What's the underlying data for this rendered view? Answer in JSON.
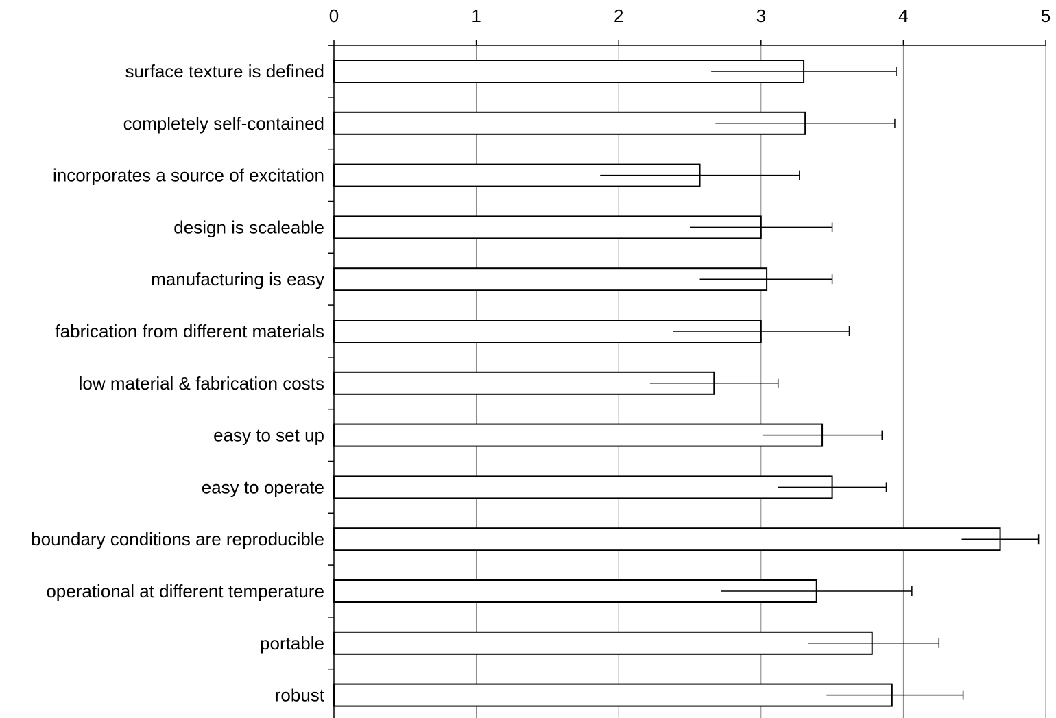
{
  "chart_data": {
    "type": "bar",
    "orientation": "horizontal",
    "x_axis_position": "top",
    "xlim": [
      0,
      5
    ],
    "xticks": [
      "0",
      "1",
      "2",
      "3",
      "4",
      "5"
    ],
    "grid": "vertical",
    "legend": "none",
    "categories": [
      "surface texture is defined",
      "completely self-contained",
      "incorporates a source of excitation",
      "design is scaleable",
      "manufacturing is easy",
      "fabrication from different materials",
      "low material & fabrication costs",
      "easy to set up",
      "easy to operate",
      "boundary conditions are reproducible",
      "operational at different temperature",
      "portable",
      "robust"
    ],
    "values": [
      3.3,
      3.31,
      2.57,
      3.0,
      3.04,
      3.0,
      2.67,
      3.43,
      3.5,
      4.68,
      3.39,
      3.78,
      3.92
    ],
    "error_low": [
      2.65,
      2.68,
      1.87,
      2.5,
      2.57,
      2.38,
      2.22,
      3.01,
      3.12,
      4.41,
      2.72,
      3.33,
      3.46
    ],
    "error_high": [
      3.95,
      3.94,
      3.27,
      3.5,
      3.5,
      3.62,
      3.12,
      3.85,
      3.88,
      4.95,
      4.06,
      4.25,
      4.42
    ],
    "colors": {
      "bar_fill": "#ffffff",
      "bar_stroke": "#000000",
      "grid": "#808080"
    }
  }
}
